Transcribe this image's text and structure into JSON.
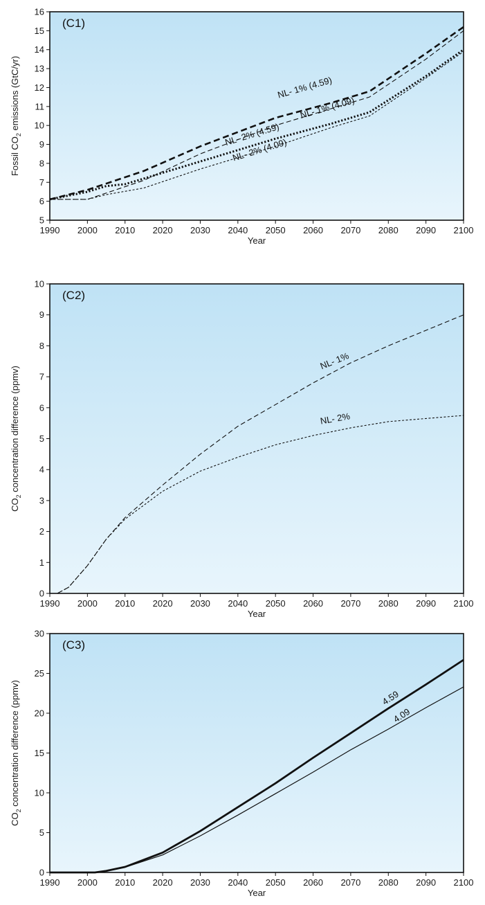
{
  "chart_data": [
    {
      "type": "line",
      "panel_label": "(C1)",
      "xlabel": "Year",
      "ylabel": "Fossil CO",
      "ylabel_sub": "2",
      "ylabel_suffix": " emissions (GtC/yr)",
      "xlim": [
        1990,
        2100
      ],
      "ylim": [
        5,
        16
      ],
      "xticks": [
        1990,
        2000,
        2010,
        2020,
        2030,
        2040,
        2050,
        2060,
        2070,
        2080,
        2090,
        2100
      ],
      "yticks": [
        5,
        6,
        7,
        8,
        9,
        10,
        11,
        12,
        13,
        14,
        15,
        16
      ],
      "background": {
        "top": "#bfe2f5",
        "bottom": "#e8f5fc"
      },
      "series": [
        {
          "name": "NL-1% (4.59)",
          "style": "long-dash-thick",
          "x": [
            1990,
            2000,
            2015,
            2030,
            2050,
            2065,
            2075,
            2090,
            2100
          ],
          "y": [
            6.1,
            6.6,
            7.6,
            8.9,
            10.4,
            11.2,
            11.8,
            13.8,
            15.2
          ]
        },
        {
          "name": "NL-1% (4.09)",
          "style": "long-dash-thin",
          "x": [
            1990,
            2000,
            2015,
            2030,
            2050,
            2065,
            2075,
            2090,
            2100
          ],
          "y": [
            6.1,
            6.1,
            7.1,
            8.5,
            10.0,
            10.9,
            11.5,
            13.5,
            15.0
          ]
        },
        {
          "name": "NL-2% (4.59)",
          "style": "dotted-thick",
          "x": [
            1990,
            2000,
            2005,
            2010,
            2020,
            2030,
            2050,
            2065,
            2075,
            2090,
            2100
          ],
          "y": [
            6.1,
            6.5,
            6.8,
            6.9,
            7.5,
            8.1,
            9.3,
            10.1,
            10.7,
            12.6,
            14.0
          ]
        },
        {
          "name": "NL-2% (4.09)",
          "style": "short-dash-thin",
          "x": [
            1990,
            2000,
            2005,
            2015,
            2030,
            2050,
            2065,
            2075,
            2090,
            2100
          ],
          "y": [
            6.1,
            6.1,
            6.35,
            6.7,
            7.7,
            8.9,
            9.9,
            10.5,
            12.5,
            13.9
          ]
        }
      ],
      "annotations": [
        {
          "text": "NL- 1% (4.59)",
          "x": 2058,
          "y": 11.85,
          "angle": -16
        },
        {
          "text": "NL- 1% (4.09)",
          "x": 2064,
          "y": 10.78,
          "angle": -16
        },
        {
          "text": "NL- 2% (4.59)",
          "x": 2044,
          "y": 9.37,
          "angle": -17
        },
        {
          "text": "NL- 2% (4.09)",
          "x": 2046,
          "y": 8.55,
          "angle": -17
        }
      ]
    },
    {
      "type": "line",
      "panel_label": "(C2)",
      "xlabel": "Year",
      "ylabel": "CO",
      "ylabel_sub": "2",
      "ylabel_suffix": " concentration difference (ppmv)",
      "xlim": [
        1990,
        2100
      ],
      "ylim": [
        0,
        10
      ],
      "xticks": [
        1990,
        2000,
        2010,
        2020,
        2030,
        2040,
        2050,
        2060,
        2070,
        2080,
        2090,
        2100
      ],
      "yticks": [
        0,
        1,
        2,
        3,
        4,
        5,
        6,
        7,
        8,
        9,
        10
      ],
      "background": {
        "top": "#bfe2f5",
        "bottom": "#e8f5fc"
      },
      "series": [
        {
          "name": "NL-1%",
          "style": "long-dash-thin",
          "x": [
            1992,
            1995,
            2000,
            2005,
            2010,
            2020,
            2030,
            2040,
            2050,
            2060,
            2070,
            2080,
            2090,
            2100
          ],
          "y": [
            0,
            0.2,
            0.9,
            1.75,
            2.45,
            3.5,
            4.5,
            5.4,
            6.1,
            6.8,
            7.45,
            8.0,
            8.5,
            9.0
          ]
        },
        {
          "name": "NL-2%",
          "style": "short-dash-thin",
          "x": [
            1992,
            1995,
            2000,
            2005,
            2010,
            2020,
            2030,
            2040,
            2050,
            2060,
            2070,
            2080,
            2090,
            2100
          ],
          "y": [
            0,
            0.2,
            0.9,
            1.75,
            2.4,
            3.3,
            3.95,
            4.4,
            4.8,
            5.1,
            5.35,
            5.55,
            5.65,
            5.75
          ]
        }
      ],
      "annotations": [
        {
          "text": "NL- 1%",
          "x": 2066,
          "y": 7.42,
          "angle": -22
        },
        {
          "text": "NL- 2%",
          "x": 2066,
          "y": 5.55,
          "angle": -10
        }
      ]
    },
    {
      "type": "line",
      "panel_label": "(C3)",
      "xlabel": "Year",
      "ylabel": "CO",
      "ylabel_sub": "2",
      "ylabel_suffix": " concentration difference (ppmv)",
      "xlim": [
        1990,
        2100
      ],
      "ylim": [
        0,
        30
      ],
      "xticks": [
        1990,
        2000,
        2010,
        2020,
        2030,
        2040,
        2050,
        2060,
        2070,
        2080,
        2090,
        2100
      ],
      "yticks": [
        0,
        5,
        10,
        15,
        20,
        25,
        30
      ],
      "background": {
        "top": "#bfe2f5",
        "bottom": "#e8f5fc"
      },
      "series": [
        {
          "name": "4.59",
          "style": "solid-thick",
          "x": [
            1990,
            2002,
            2005,
            2010,
            2020,
            2030,
            2040,
            2050,
            2060,
            2070,
            2080,
            2090,
            2100
          ],
          "y": [
            0,
            0,
            0.2,
            0.7,
            2.5,
            5.2,
            8.2,
            11.2,
            14.4,
            17.5,
            20.6,
            23.6,
            26.7
          ]
        },
        {
          "name": "4.09",
          "style": "solid-thin",
          "x": [
            1990,
            2002,
            2005,
            2010,
            2020,
            2030,
            2040,
            2050,
            2060,
            2070,
            2080,
            2090,
            2100
          ],
          "y": [
            0,
            0,
            0.2,
            0.65,
            2.2,
            4.6,
            7.2,
            9.9,
            12.6,
            15.4,
            18.0,
            20.7,
            23.3
          ]
        }
      ],
      "annotations": [
        {
          "text": "4.59",
          "x": 2081,
          "y": 21.6,
          "angle": -33
        },
        {
          "text": "4.09",
          "x": 2084,
          "y": 19.4,
          "angle": -33
        }
      ]
    }
  ]
}
